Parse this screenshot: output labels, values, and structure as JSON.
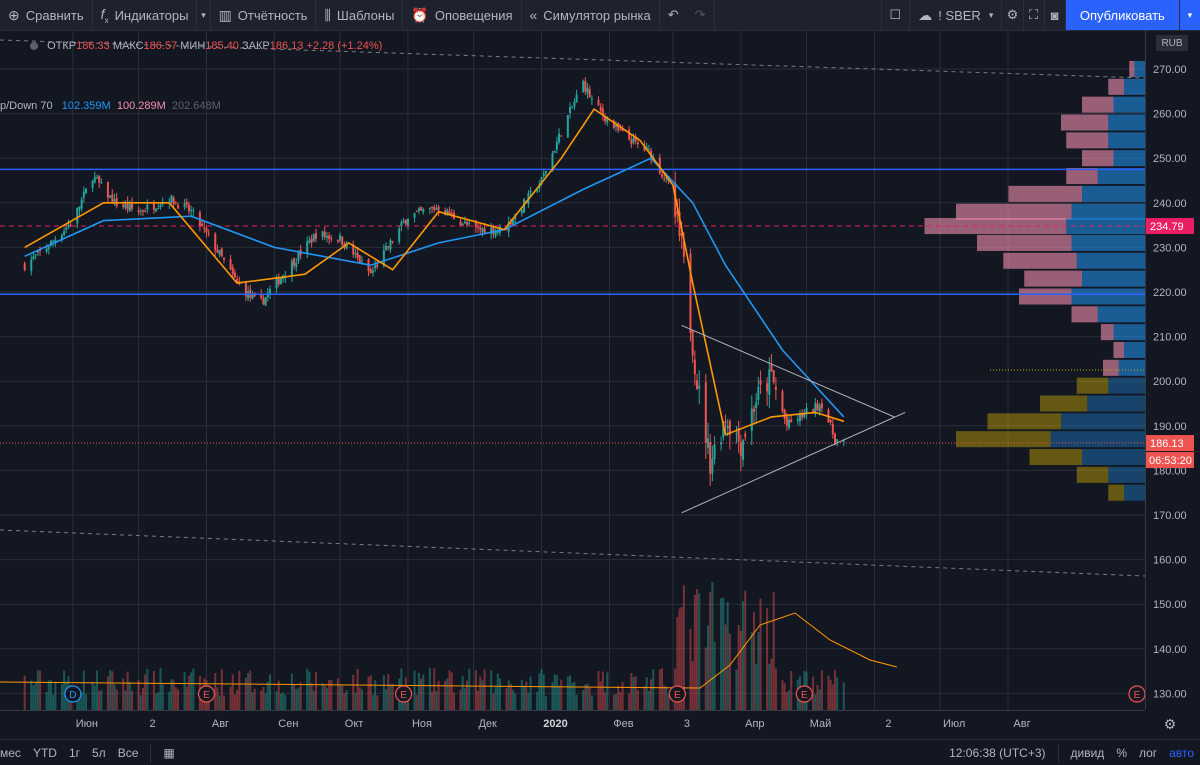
{
  "toolbar": {
    "compare": "Сравнить",
    "indicators": "Индикаторы",
    "financials": "Отчётность",
    "templates": "Шаблоны",
    "alerts": "Оповещения",
    "replay": "Симулятор рынка",
    "symbol": "! SBER",
    "publish": "Опубликовать"
  },
  "legend": {
    "open_label": "ОТКР",
    "open": "186.33",
    "high_label": "МАКС",
    "high": "186.57",
    "low_label": "МИН",
    "low": "185.40",
    "close_label": "ЗАКР",
    "close": "186.13",
    "change": "+2.28 (+1.24%)"
  },
  "indicator_legend": {
    "name": "p/Down 70",
    "up": "102.359M",
    "down": "100.289M",
    "total": "202.648M"
  },
  "currency": "RUB",
  "price_axis": {
    "ticks": [
      "270.00",
      "260.00",
      "250.00",
      "240.00",
      "230.00",
      "220.00",
      "210.00",
      "200.00",
      "190.00",
      "180.00",
      "170.00",
      "160.00",
      "150.00",
      "140.00",
      "130.00"
    ],
    "poc_label": "234.79",
    "last_price_label": "186.13",
    "countdown": "06:53:20"
  },
  "time_axis": {
    "labels": [
      "Июн",
      "2",
      "Авг",
      "Сен",
      "Окт",
      "Ноя",
      "Дек",
      "2020",
      "Фев",
      "3",
      "Апр",
      "Май",
      "2",
      "Июл",
      "Авг"
    ]
  },
  "events": {
    "dividend": "D",
    "earnings": "E"
  },
  "bottombar": {
    "ranges": [
      "мес",
      "YTD",
      "1г",
      "5л",
      "Все"
    ],
    "clock": "12:06:38 (UTC+3)",
    "dividends": "дивид",
    "percent": "%",
    "log": "лог",
    "auto": "авто"
  },
  "colors": {
    "background": "#131722",
    "up": "#26a69a",
    "down": "#ef5350",
    "ma_fast": "#ff9800",
    "ma_slow": "#2196f3",
    "accent": "#2962ff",
    "poc": "#e91e63"
  },
  "chart_data": {
    "type": "candlestick",
    "symbol": "SBER",
    "currency": "RUB",
    "ylim": [
      125,
      273
    ],
    "x_range": [
      "May 2019",
      "Sep 2020"
    ],
    "last_bar": {
      "open": 186.33,
      "high": 186.57,
      "low": 185.4,
      "close": 186.13,
      "change": 2.28,
      "change_pct": 1.24
    },
    "close_path": [
      {
        "x": "2019-05-10",
        "y": 226
      },
      {
        "x": "2019-05-20",
        "y": 230
      },
      {
        "x": "2019-06-01",
        "y": 236
      },
      {
        "x": "2019-06-10",
        "y": 246
      },
      {
        "x": "2019-06-20",
        "y": 240
      },
      {
        "x": "2019-07-01",
        "y": 238
      },
      {
        "x": "2019-07-15",
        "y": 241
      },
      {
        "x": "2019-07-25",
        "y": 238
      },
      {
        "x": "2019-08-05",
        "y": 230
      },
      {
        "x": "2019-08-15",
        "y": 222
      },
      {
        "x": "2019-08-25",
        "y": 217
      },
      {
        "x": "2019-09-05",
        "y": 224
      },
      {
        "x": "2019-09-20",
        "y": 233
      },
      {
        "x": "2019-10-01",
        "y": 232
      },
      {
        "x": "2019-10-15",
        "y": 224
      },
      {
        "x": "2019-11-01",
        "y": 237
      },
      {
        "x": "2019-11-15",
        "y": 239
      },
      {
        "x": "2019-12-01",
        "y": 234
      },
      {
        "x": "2019-12-15",
        "y": 234
      },
      {
        "x": "2020-01-01",
        "y": 245
      },
      {
        "x": "2020-01-10",
        "y": 256
      },
      {
        "x": "2020-01-20",
        "y": 267
      },
      {
        "x": "2020-01-25",
        "y": 262
      },
      {
        "x": "2020-02-05",
        "y": 256
      },
      {
        "x": "2020-02-20",
        "y": 251
      },
      {
        "x": "2020-02-28",
        "y": 244
      },
      {
        "x": "2020-03-05",
        "y": 230
      },
      {
        "x": "2020-03-12",
        "y": 200
      },
      {
        "x": "2020-03-18",
        "y": 182
      },
      {
        "x": "2020-03-25",
        "y": 192
      },
      {
        "x": "2020-04-01",
        "y": 186
      },
      {
        "x": "2020-04-08",
        "y": 196
      },
      {
        "x": "2020-04-15",
        "y": 201
      },
      {
        "x": "2020-04-22",
        "y": 190
      },
      {
        "x": "2020-05-01",
        "y": 193
      },
      {
        "x": "2020-05-08",
        "y": 195
      },
      {
        "x": "2020-05-14",
        "y": 187
      },
      {
        "x": "2020-05-18",
        "y": 186.13
      }
    ],
    "ma_fast_path": [
      {
        "x": "2019-05-10",
        "y": 230
      },
      {
        "x": "2019-06-15",
        "y": 240
      },
      {
        "x": "2019-07-15",
        "y": 240
      },
      {
        "x": "2019-08-15",
        "y": 222
      },
      {
        "x": "2019-09-15",
        "y": 224
      },
      {
        "x": "2019-10-05",
        "y": 231
      },
      {
        "x": "2019-10-25",
        "y": 225
      },
      {
        "x": "2019-11-15",
        "y": 238
      },
      {
        "x": "2019-12-15",
        "y": 234
      },
      {
        "x": "2020-01-10",
        "y": 250
      },
      {
        "x": "2020-01-25",
        "y": 261
      },
      {
        "x": "2020-02-15",
        "y": 254
      },
      {
        "x": "2020-03-01",
        "y": 244
      },
      {
        "x": "2020-03-10",
        "y": 222
      },
      {
        "x": "2020-03-25",
        "y": 188
      },
      {
        "x": "2020-04-15",
        "y": 192
      },
      {
        "x": "2020-05-05",
        "y": 193
      },
      {
        "x": "2020-05-18",
        "y": 191
      }
    ],
    "ma_slow_path": [
      {
        "x": "2019-05-10",
        "y": 228
      },
      {
        "x": "2019-06-15",
        "y": 236
      },
      {
        "x": "2019-07-25",
        "y": 237
      },
      {
        "x": "2019-09-01",
        "y": 230
      },
      {
        "x": "2019-10-15",
        "y": 226
      },
      {
        "x": "2019-11-15",
        "y": 231
      },
      {
        "x": "2019-12-15",
        "y": 234
      },
      {
        "x": "2020-01-20",
        "y": 243
      },
      {
        "x": "2020-02-20",
        "y": 250
      },
      {
        "x": "2020-03-10",
        "y": 240
      },
      {
        "x": "2020-03-25",
        "y": 226
      },
      {
        "x": "2020-04-20",
        "y": 207
      },
      {
        "x": "2020-05-18",
        "y": 192
      }
    ],
    "horizontal_levels": [
      {
        "name": "resistance",
        "y": 247.5,
        "color": "#2962ff"
      },
      {
        "name": "support",
        "y": 219.5,
        "color": "#2962ff"
      },
      {
        "name": "poc",
        "y": 234.79,
        "color": "#e91e63"
      }
    ],
    "triangle": {
      "upper": [
        {
          "x": "2020-03-05",
          "y": 212.5
        },
        {
          "x": "2020-06-10",
          "y": 192
        }
      ],
      "lower": [
        {
          "x": "2020-03-05",
          "y": 170.5
        },
        {
          "x": "2020-06-15",
          "y": 193
        }
      ]
    },
    "volume_profile": [
      {
        "y": 270,
        "up": 0.1,
        "down": 0.05
      },
      {
        "y": 266,
        "up": 0.2,
        "down": 0.15
      },
      {
        "y": 262,
        "up": 0.3,
        "down": 0.3
      },
      {
        "y": 258,
        "up": 0.35,
        "down": 0.45
      },
      {
        "y": 254,
        "up": 0.35,
        "down": 0.4
      },
      {
        "y": 250,
        "up": 0.3,
        "down": 0.3
      },
      {
        "y": 246,
        "up": 0.45,
        "down": 0.3
      },
      {
        "y": 242,
        "up": 0.6,
        "down": 0.7
      },
      {
        "y": 238,
        "up": 0.7,
        "down": 1.1
      },
      {
        "y": 234.79,
        "up": 0.75,
        "down": 1.35
      },
      {
        "y": 231,
        "up": 0.7,
        "down": 0.9
      },
      {
        "y": 227,
        "up": 0.65,
        "down": 0.7
      },
      {
        "y": 223,
        "up": 0.6,
        "down": 0.55
      },
      {
        "y": 219,
        "up": 0.7,
        "down": 0.5
      },
      {
        "y": 215,
        "up": 0.45,
        "down": 0.25
      },
      {
        "y": 211,
        "up": 0.3,
        "down": 0.12
      },
      {
        "y": 207,
        "up": 0.2,
        "down": 0.1
      },
      {
        "y": 203,
        "up": 0.25,
        "down": 0.15
      },
      {
        "y": 199,
        "up": 0.35,
        "down": 0.3
      },
      {
        "y": 195,
        "up": 0.55,
        "down": 0.45
      },
      {
        "y": 191,
        "up": 0.8,
        "down": 0.7
      },
      {
        "y": 187,
        "up": 0.9,
        "down": 0.9
      },
      {
        "y": 183,
        "up": 0.6,
        "down": 0.5
      },
      {
        "y": 179,
        "up": 0.35,
        "down": 0.3
      },
      {
        "y": 175,
        "up": 0.2,
        "down": 0.15
      }
    ]
  }
}
